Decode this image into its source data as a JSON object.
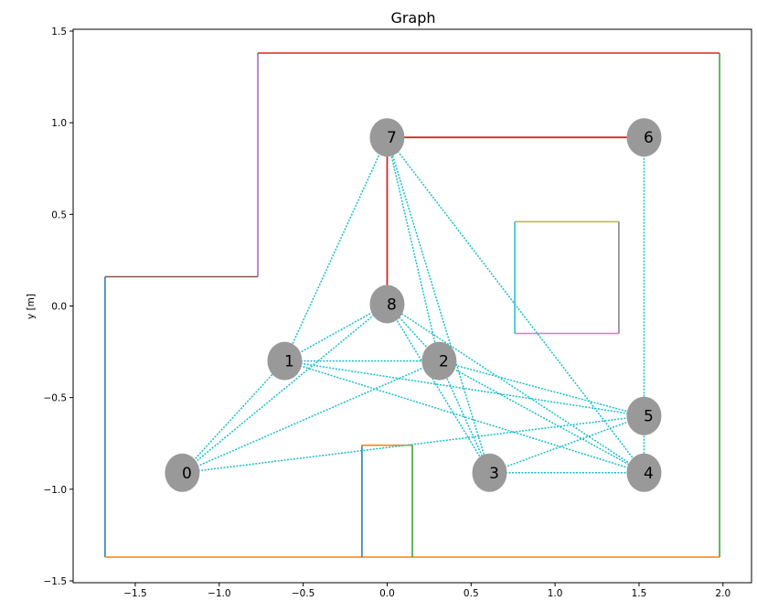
{
  "chart_data": {
    "type": "scatter",
    "title": "Graph",
    "xlabel": "",
    "ylabel": "y [m]",
    "xlim": [
      -1.87,
      2.17
    ],
    "ylim": [
      -1.51,
      1.51
    ],
    "x_ticks": [
      -1.5,
      -1.0,
      -0.5,
      0.0,
      0.5,
      1.0,
      1.5,
      2.0
    ],
    "x_tick_labels": [
      "−1.5",
      "−1.0",
      "−0.5",
      "0.0",
      "0.5",
      "1.0",
      "1.5",
      "2.0"
    ],
    "y_ticks": [
      -1.5,
      -1.0,
      -0.5,
      0.0,
      0.5,
      1.0,
      1.5
    ],
    "y_tick_labels": [
      "−1.5",
      "−1.0",
      "−0.5",
      "0.0",
      "0.5",
      "1.0",
      "1.5"
    ],
    "grid": false,
    "walls": [
      {
        "x": [
          -1.68,
          -1.68
        ],
        "y": [
          -1.37,
          0.16
        ],
        "color": "#1f77b4"
      },
      {
        "x": [
          -1.68,
          -0.77
        ],
        "y": [
          0.16,
          0.16
        ],
        "color": "#8c564b"
      },
      {
        "x": [
          -0.77,
          -0.77
        ],
        "y": [
          0.16,
          1.38
        ],
        "color": "#9467bd"
      },
      {
        "x": [
          -0.77,
          1.98
        ],
        "y": [
          1.38,
          1.38
        ],
        "color": "#d62728"
      },
      {
        "x": [
          1.98,
          1.98
        ],
        "y": [
          1.38,
          -1.37
        ],
        "color": "#2ca02c"
      },
      {
        "x": [
          1.98,
          -1.68
        ],
        "y": [
          -1.37,
          -1.37
        ],
        "color": "#ff7f0e"
      },
      {
        "x": [
          -0.15,
          -0.15
        ],
        "y": [
          -1.37,
          -0.76
        ],
        "color": "#1f77b4"
      },
      {
        "x": [
          -0.15,
          0.15
        ],
        "y": [
          -0.76,
          -0.76
        ],
        "color": "#ff7f0e"
      },
      {
        "x": [
          0.15,
          0.15
        ],
        "y": [
          -0.76,
          -1.37
        ],
        "color": "#2ca02c"
      },
      {
        "x": [
          0.76,
          1.38
        ],
        "y": [
          0.46,
          0.46
        ],
        "color": "#bcbd22"
      },
      {
        "x": [
          1.38,
          1.38
        ],
        "y": [
          0.46,
          -0.15
        ],
        "color": "#7f7f7f"
      },
      {
        "x": [
          1.38,
          0.76
        ],
        "y": [
          -0.15,
          -0.15
        ],
        "color": "#e377c2"
      },
      {
        "x": [
          0.76,
          0.76
        ],
        "y": [
          -0.15,
          0.46
        ],
        "color": "#17becf"
      }
    ],
    "nodes": [
      {
        "label": "0",
        "x": -1.22,
        "y": -0.91
      },
      {
        "label": "1",
        "x": -0.61,
        "y": -0.3
      },
      {
        "label": "2",
        "x": 0.31,
        "y": -0.3
      },
      {
        "label": "3",
        "x": 0.61,
        "y": -0.91
      },
      {
        "label": "4",
        "x": 1.53,
        "y": -0.91
      },
      {
        "label": "5",
        "x": 1.53,
        "y": -0.6
      },
      {
        "label": "6",
        "x": 1.53,
        "y": 0.92
      },
      {
        "label": "7",
        "x": 0.0,
        "y": 0.92
      },
      {
        "label": "8",
        "x": 0.0,
        "y": 0.01
      }
    ],
    "edges": [
      [
        0,
        1
      ],
      [
        0,
        8
      ],
      [
        0,
        2
      ],
      [
        0,
        5
      ],
      [
        1,
        7
      ],
      [
        1,
        8
      ],
      [
        1,
        2
      ],
      [
        1,
        5
      ],
      [
        1,
        4
      ],
      [
        2,
        8
      ],
      [
        2,
        7
      ],
      [
        2,
        5
      ],
      [
        2,
        4
      ],
      [
        2,
        3
      ],
      [
        3,
        8
      ],
      [
        3,
        7
      ],
      [
        3,
        5
      ],
      [
        3,
        4
      ],
      [
        4,
        7
      ],
      [
        4,
        5
      ],
      [
        4,
        8
      ],
      [
        5,
        6
      ]
    ],
    "path_edges": [
      [
        7,
        8
      ],
      [
        7,
        6
      ]
    ],
    "edge_color": "#17becf",
    "path_color": "#d62728",
    "node_color": "#999999"
  }
}
